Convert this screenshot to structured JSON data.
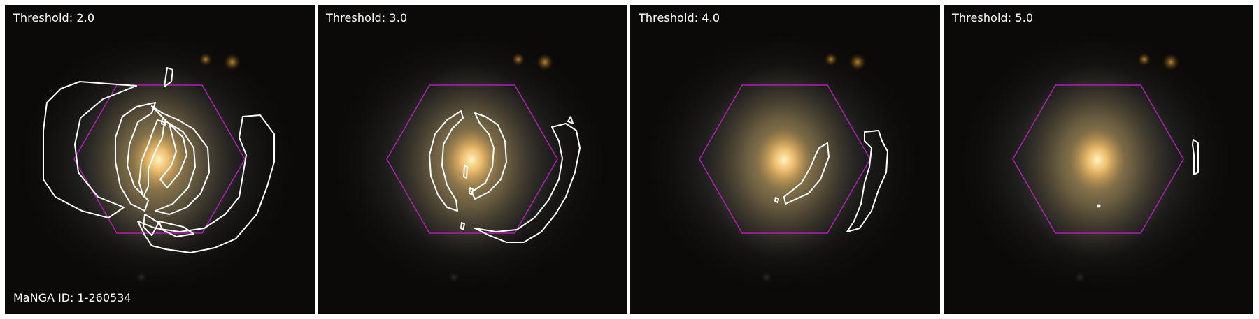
{
  "panels": [
    {
      "label": "Threshold: 2.0",
      "threshold": 2.0
    },
    {
      "label": "Threshold: 3.0",
      "threshold": 3.0
    },
    {
      "label": "Threshold: 4.0",
      "threshold": 4.0
    },
    {
      "label": "Threshold: 5.0",
      "threshold": 5.0
    }
  ],
  "manga_id_label": "MaNGA ID: 1-260534",
  "colors": {
    "hexagon": "#b020b0",
    "contour": "#ffffff",
    "background": "#0b0a08",
    "galaxy_core": "#ffe6a0"
  }
}
